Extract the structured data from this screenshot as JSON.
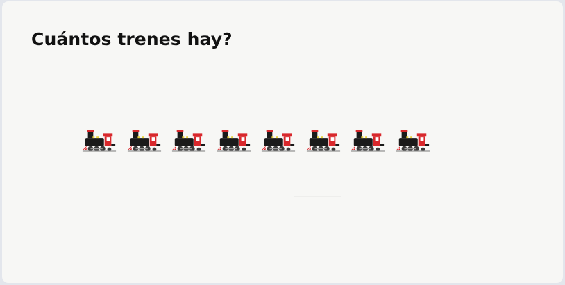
{
  "question": {
    "text": "Cuántos trenes hay?"
  },
  "items": {
    "icon": "steam-locomotive-icon",
    "count": 8
  },
  "colors": {
    "page_background": "#e3e6ec",
    "card_background": "#f7f7f5",
    "train_body": "#1a1a1a",
    "train_cab": "#d8282c",
    "train_accent": "#e8d23a"
  }
}
